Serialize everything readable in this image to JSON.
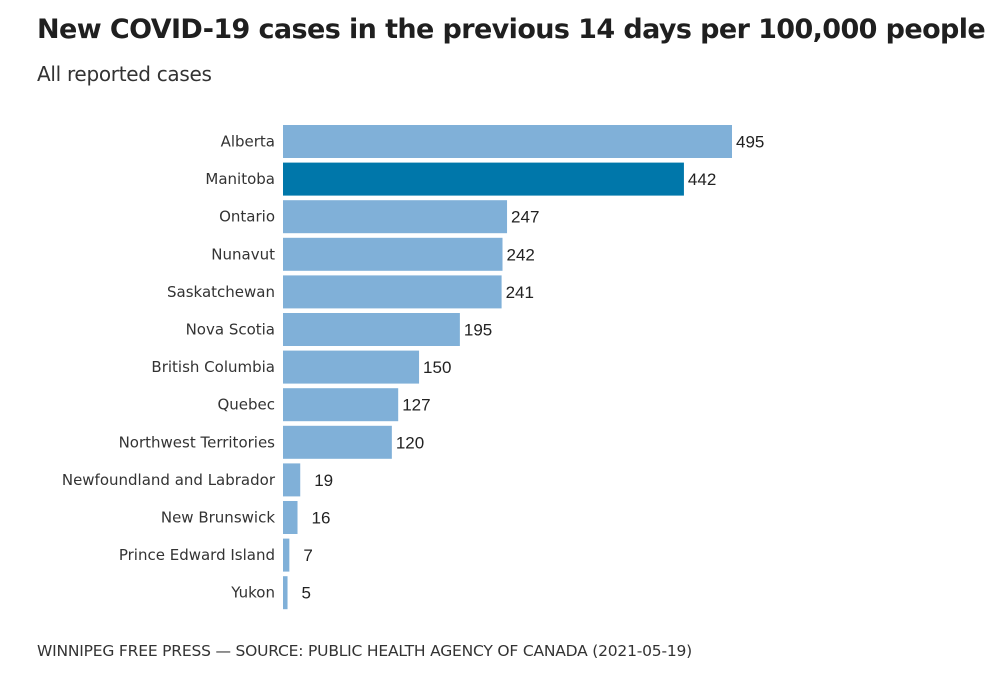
{
  "chart_data": {
    "type": "bar",
    "orientation": "horizontal",
    "title": "New COVID-19 cases in the previous 14 days per 100,000 people",
    "subtitle": "All reported cases",
    "categories": [
      "Alberta",
      "Manitoba",
      "Ontario",
      "Nunavut",
      "Saskatchewan",
      "Nova Scotia",
      "British Columbia",
      "Quebec",
      "Northwest Territories",
      "Newfoundland and Labrador",
      "New Brunswick",
      "Prince Edward Island",
      "Yukon"
    ],
    "values": [
      495,
      442,
      247,
      242,
      241,
      195,
      150,
      127,
      120,
      19,
      16,
      7,
      5
    ],
    "highlight": "Manitoba",
    "colors": {
      "default": "#80b0d8",
      "highlight": "#0077aa"
    },
    "xlabel": "",
    "ylabel": "",
    "xlim": [
      0,
      495
    ],
    "grid": false,
    "legend": "none",
    "data_labels": true
  },
  "footer": "WINNIPEG FREE PRESS — SOURCE: PUBLIC HEALTH AGENCY OF CANADA (2021-05-19)"
}
